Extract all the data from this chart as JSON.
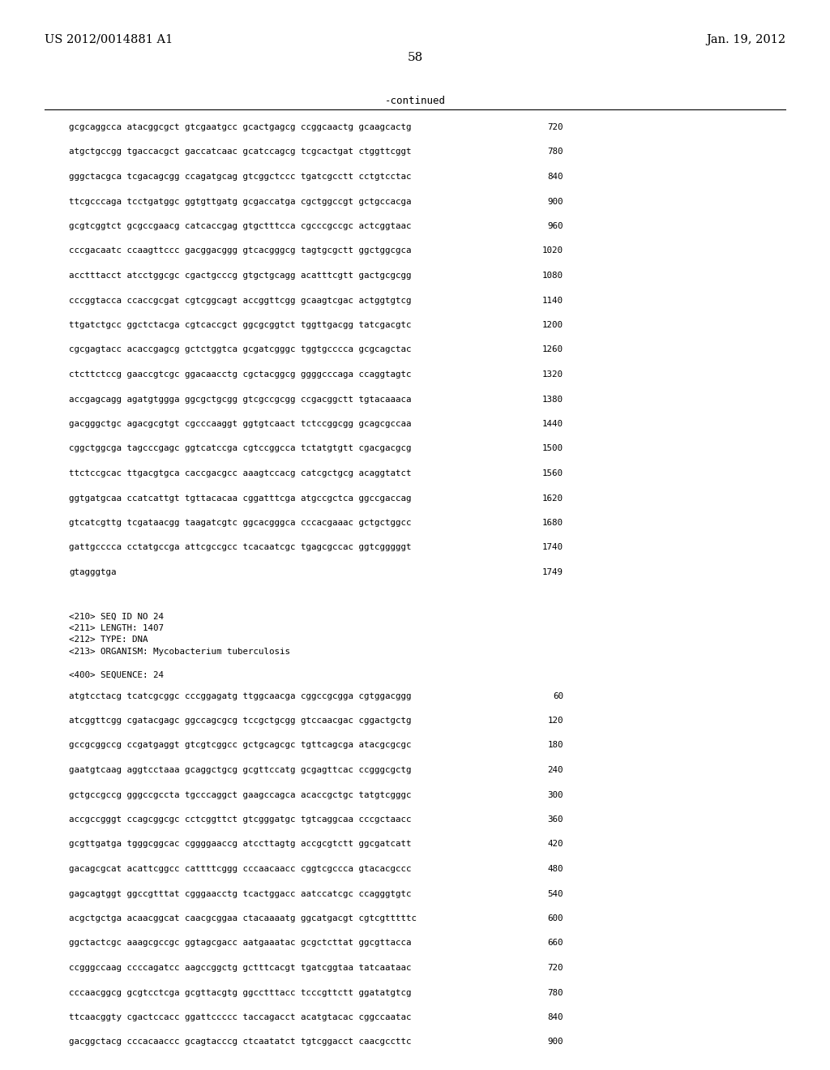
{
  "header_left": "US 2012/0014881 A1",
  "header_right": "Jan. 19, 2012",
  "page_number": "58",
  "continued_label": "-continued",
  "background_color": "#ffffff",
  "text_color": "#000000",
  "sequence_lines_top": [
    [
      "gcgcaggcca atacggcgct gtcgaatgcc gcactgagcg ccggcaactg gcaagcactg",
      "720"
    ],
    [
      "atgctgccgg tgaccacgct gaccatcaac gcatccagcg tcgcactgat ctggttcggt",
      "780"
    ],
    [
      "gggctacgca tcgacagcgg ccagatgcag gtcggctccc tgatcgcctt cctgtcctac",
      "840"
    ],
    [
      "ttcgcccaga tcctgatggc ggtgttgatg gcgaccatga cgctggccgt gctgccacga",
      "900"
    ],
    [
      "gcgtcggtct gcgccgaacg catcaccgag gtgctttcca cgcccgccgc actcggtaac",
      "960"
    ],
    [
      "cccgacaatc ccaagttccc gacggacggg gtcacgggcg tagtgcgctt ggctggcgca",
      "1020"
    ],
    [
      "acctttacct atcctggcgc cgactgcccg gtgctgcagg acatttcgtt gactgcgcgg",
      "1080"
    ],
    [
      "cccggtacca ccaccgcgat cgtcggcagt accggttcgg gcaagtcgac actggtgtcg",
      "1140"
    ],
    [
      "ttgatctgcc ggctctacga cgtcaccgct ggcgcggtct tggttgacgg tatcgacgtc",
      "1200"
    ],
    [
      "cgcgagtacc acaccgagcg gctctggtca gcgatcgggc tggtgcccca gcgcagctac",
      "1260"
    ],
    [
      "ctcttctccg gaaccgtcgc ggacaacctg cgctacggcg ggggcccaga ccaggtagtc",
      "1320"
    ],
    [
      "accgagcagg agatgtggga ggcgctgcgg gtcgccgcgg ccgacggctt tgtacaaaca",
      "1380"
    ],
    [
      "gacgggctgc agacgcgtgt cgcccaaggt ggtgtcaact tctccggcgg gcagcgccaa",
      "1440"
    ],
    [
      "cggctggcga tagcccgagc ggtcatccga cgtccggcca tctatgtgtt cgacgacgcg",
      "1500"
    ],
    [
      "ttctccgcac ttgacgtgca caccgacgcc aaagtccacg catcgctgcg acaggtatct",
      "1560"
    ],
    [
      "ggtgatgcaa ccatcattgt tgttacacaa cggatttcga atgccgctca ggccgaccag",
      "1620"
    ],
    [
      "gtcatcgttg tcgataacgg taagatcgtc ggcacgggca cccacgaaac gctgctggcc",
      "1680"
    ],
    [
      "gattgcccca cctatgccga attcgccgcc tcacaatcgc tgagcgccac ggtcgggggt",
      "1740"
    ],
    [
      "gtagggtga",
      "1749"
    ]
  ],
  "metadata_lines": [
    "<210> SEQ ID NO 24",
    "<211> LENGTH: 1407",
    "<212> TYPE: DNA",
    "<213> ORGANISM: Mycobacterium tuberculosis"
  ],
  "sequence_label": "<400> SEQUENCE: 24",
  "sequence_lines_bottom": [
    [
      "atgtcctacg tcatcgcggc cccggagatg ttggcaacga cggccgcgga cgtggacggg",
      "60"
    ],
    [
      "atcggttcgg cgatacgagc ggccagcgcg tccgctgcgg gtccaacgac cggactgctg",
      "120"
    ],
    [
      "gccgcggccg ccgatgaggt gtcgtcggcc gctgcagcgc tgttcagcga atacgcgcgc",
      "180"
    ],
    [
      "gaatgtcaag aggtcctaaa gcaggctgcg gcgttccatg gcgagttcac ccgggcgctg",
      "240"
    ],
    [
      "gctgccgccg gggccgccta tgcccaggct gaagccagca acaccgctgc tatgtcgggc",
      "300"
    ],
    [
      "accgccgggt ccagcggcgc cctcggttct gtcgggatgc tgtcaggcaa cccgctaacc",
      "360"
    ],
    [
      "gcgttgatga tgggcggcac cggggaaccg atccttagtg accgcgtctt ggcgatcatt",
      "420"
    ],
    [
      "gacagcgcat acattcggcc cattttcggg cccaacaacc cggtcgccca gtacacgccc",
      "480"
    ],
    [
      "gagcagtggt ggccgtttat cgggaacctg tcactggacc aatccatcgc ccagggtgtc",
      "540"
    ],
    [
      "acgctgctga acaacggcat caacgcggaa ctacaaaatg ggcatgacgt cgtcgtttttc",
      "600"
    ],
    [
      "ggctactcgc aaagcgccgc ggtagcgacc aatgaaatac gcgctcttat ggcgttacca",
      "660"
    ],
    [
      "ccgggccaag ccccagatcc aagccggctg gctttcacgt tgatcggtaa tatcaataac",
      "720"
    ],
    [
      "cccaacggcg gcgtcctcga gcgttacgtg ggcctttacc tcccgttctt ggatatgtcg",
      "780"
    ],
    [
      "ttcaacggty cgactccacc ggattccccc taccagacct acatgtacac cggccaatac",
      "840"
    ],
    [
      "gacggctacg cccacaaccc gcagtacccg ctcaatatct tgtcggacct caacgccttc",
      "900"
    ]
  ]
}
